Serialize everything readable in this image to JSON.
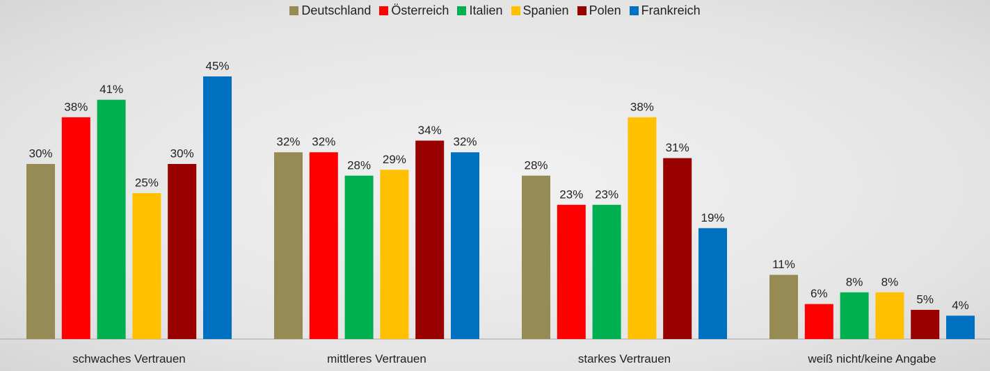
{
  "chart_data": {
    "type": "bar",
    "categories": [
      "schwaches Vertrauen",
      "mittleres Vertrauen",
      "starkes Vertrauen",
      "weiß nicht/keine Angabe"
    ],
    "series": [
      {
        "name": "Deutschland",
        "color": "#968a55",
        "values": [
          30,
          32,
          28,
          11
        ],
        "value_labels": [
          "30%",
          "32%",
          "28%",
          "11%"
        ]
      },
      {
        "name": "Österreich",
        "color": "#ff0000",
        "values": [
          38,
          32,
          23,
          6
        ],
        "value_labels": [
          "38%",
          "32%",
          "23%",
          "6%"
        ]
      },
      {
        "name": "Italien",
        "color": "#00b050",
        "values": [
          41,
          28,
          23,
          8
        ],
        "value_labels": [
          "41%",
          "28%",
          "23%",
          "8%"
        ]
      },
      {
        "name": "Spanien",
        "color": "#ffc000",
        "values": [
          25,
          29,
          38,
          8
        ],
        "value_labels": [
          "25%",
          "29%",
          "38%",
          "8%"
        ]
      },
      {
        "name": "Polen",
        "color": "#990000",
        "values": [
          30,
          34,
          31,
          5
        ],
        "value_labels": [
          "30%",
          "34%",
          "31%",
          "5%"
        ]
      },
      {
        "name": "Frankreich",
        "color": "#0070c0",
        "values": [
          45,
          32,
          19,
          4
        ],
        "value_labels": [
          "45%",
          "32%",
          "19%",
          "4%"
        ]
      }
    ],
    "legend": "top"
  }
}
